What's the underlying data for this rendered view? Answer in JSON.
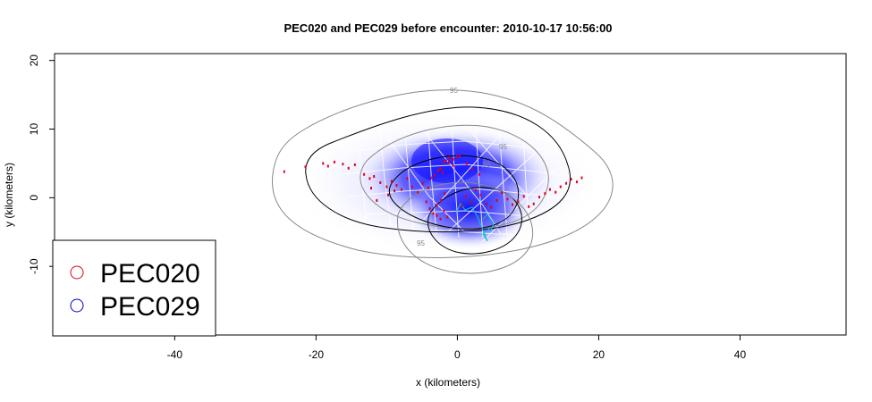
{
  "chart_data": {
    "type": "scatter",
    "title": "PEC020 and PEC029 before encounter: 2010-10-17 10:56:00",
    "xlabel": "x (kilometers)",
    "ylabel": "y (kilometers)",
    "xlim": [
      -57,
      55
    ],
    "ylim": [
      -20,
      21
    ],
    "xticks": [
      -40,
      -20,
      0,
      20,
      40
    ],
    "yticks": [
      -10,
      0,
      10,
      20
    ],
    "xtick_labels": [
      "-40",
      "-20",
      "0",
      "20",
      "40"
    ],
    "ytick_labels": [
      "-10",
      "0",
      "10",
      "20"
    ],
    "contour_label": "95",
    "legend": {
      "position": "bottom-left",
      "entries": [
        {
          "label": "PEC020",
          "color": "#e0001a"
        },
        {
          "label": "PEC029",
          "color": "#0000cc"
        }
      ]
    },
    "colors": {
      "density": "#1a1aff",
      "grid_lines": "#ffffff",
      "contour_outer": "#888888",
      "contour_inner": "#000000",
      "track": "#00c8c8"
    },
    "series": [
      {
        "name": "PEC020",
        "color": "#e0001a",
        "x": [
          -24.5,
          -21.5,
          -19,
          -18.3,
          -17.4,
          -16.2,
          -15.4,
          -14.5,
          -13.2,
          -12.4,
          -11.8,
          -10.9,
          -10,
          -9.3,
          -8.6,
          -7.9,
          -7.1,
          -6.4,
          -5.6,
          -4.9,
          -4.1,
          -3.6,
          -3.2,
          -2.7,
          -2.1,
          -1.6,
          -1.2,
          -0.6,
          -0.1,
          -4.4,
          -3.9,
          -3.4,
          -2.9,
          -2.3,
          -1.8,
          -2.9,
          -2.4,
          -1.9,
          -1.4,
          0.6,
          1.2,
          1.9,
          2.6,
          3.3,
          4.1,
          4.8,
          5.6,
          6.3,
          7.1,
          7.8,
          8.6,
          9.4,
          10.1,
          10.8,
          11.6,
          12.4,
          13.1,
          13.9,
          14.6,
          15.4,
          16.1,
          16.9,
          17.6,
          -2.4,
          -1.9,
          -1.2,
          -0.6,
          0.3,
          1.3,
          2.1,
          3.1,
          -11.4,
          -9.8,
          -12.2,
          -8.9
        ],
        "y": [
          3.8,
          4.5,
          5.0,
          4.6,
          5.2,
          4.9,
          4.3,
          4.8,
          3.4,
          2.8,
          3.1,
          2.2,
          1.6,
          2.4,
          1.8,
          1.2,
          2.8,
          1.6,
          0.8,
          2.1,
          1.4,
          2.9,
          3.3,
          4.0,
          3.6,
          5.4,
          5.1,
          4.7,
          6.0,
          -0.6,
          -1.6,
          -2.3,
          -1.1,
          -0.4,
          0.6,
          -2.6,
          -3.1,
          -1.9,
          -2.8,
          -1.2,
          0.2,
          -0.6,
          1.1,
          0.4,
          -0.9,
          -1.4,
          -0.4,
          0.7,
          -0.2,
          -1.0,
          -0.6,
          0.2,
          -1.3,
          -0.9,
          0.1,
          0.6,
          1.2,
          0.8,
          1.6,
          2.1,
          2.7,
          2.3,
          2.9,
          4.2,
          5.2,
          5.8,
          5.6,
          6.1,
          5.0,
          4.2,
          3.4,
          -0.4,
          0.4,
          1.4,
          1.0
        ]
      },
      {
        "name": "PEC029",
        "color": "#0000cc",
        "x": [],
        "y": []
      }
    ]
  }
}
